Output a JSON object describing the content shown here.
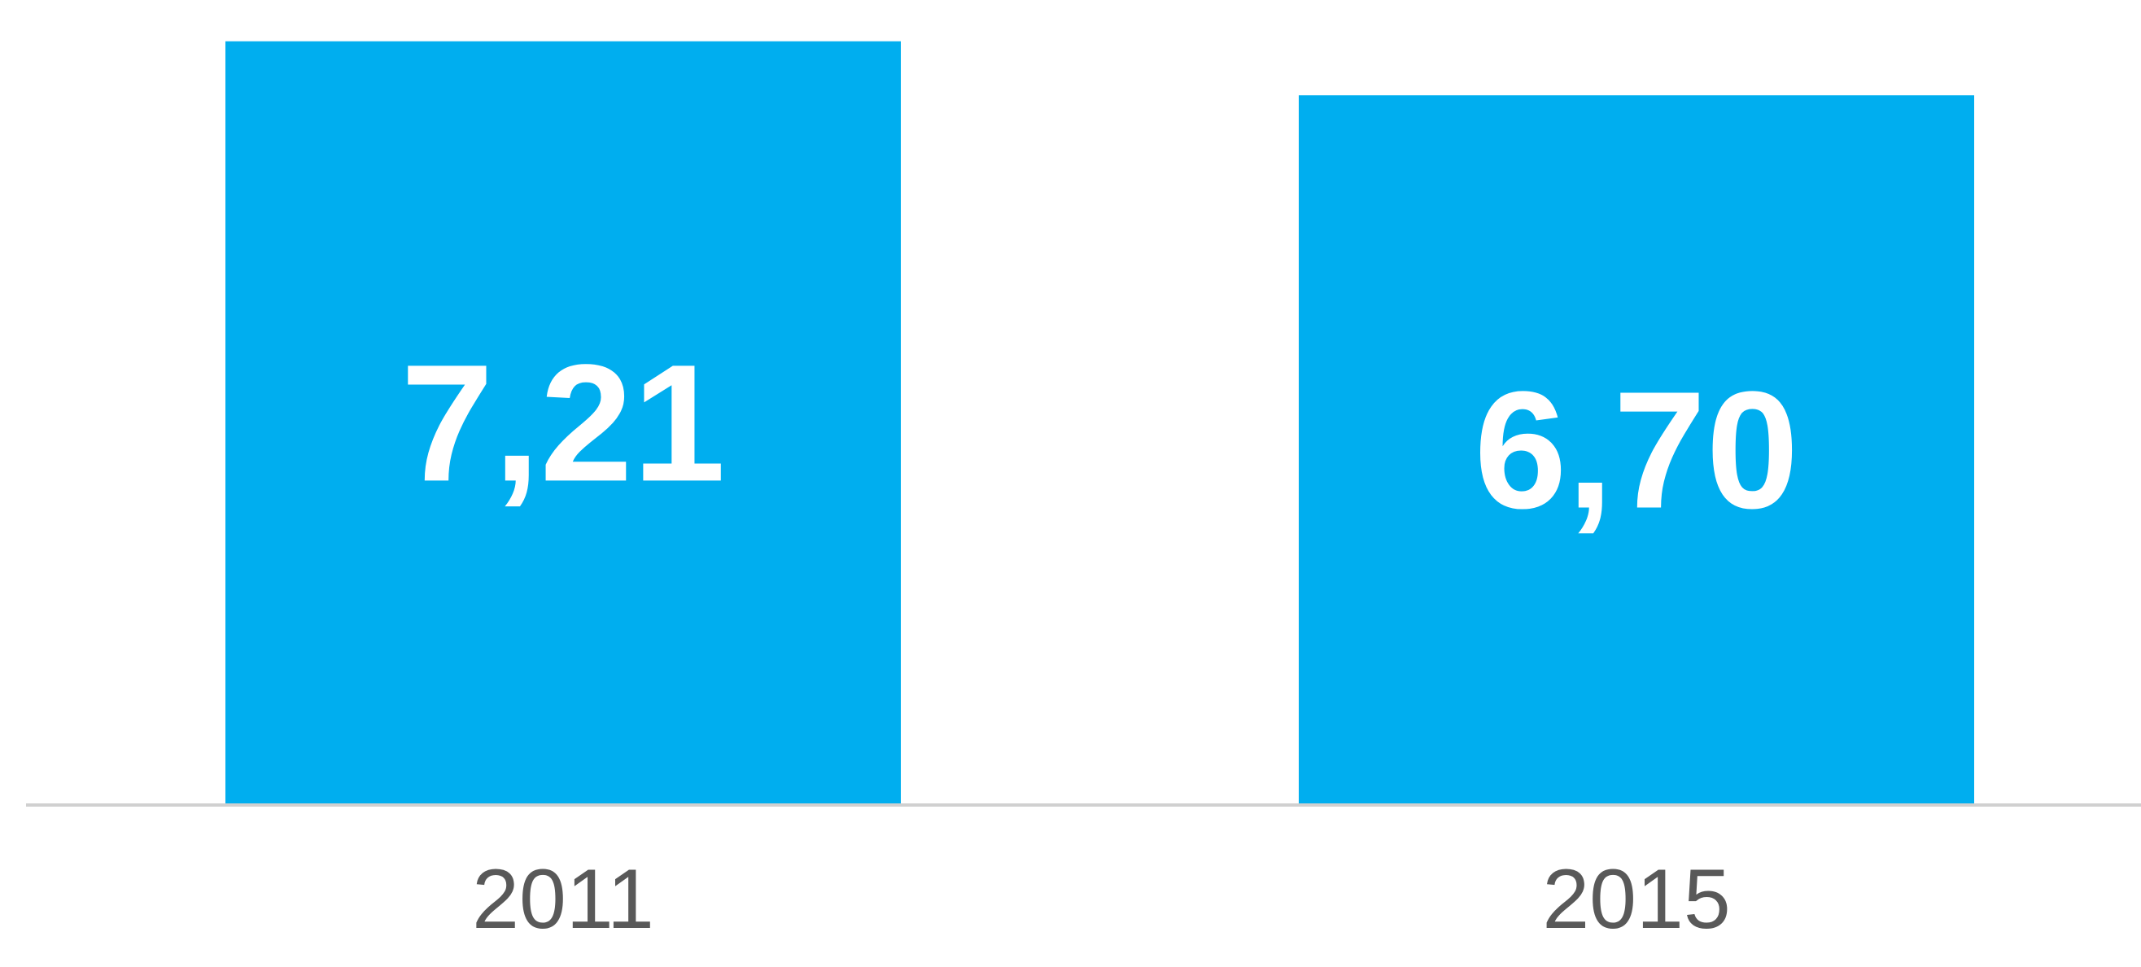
{
  "chart_data": {
    "type": "bar",
    "categories": [
      "2011",
      "2015"
    ],
    "values": [
      7.21,
      6.7
    ],
    "value_labels": [
      "7,21",
      "6,70"
    ],
    "title": "",
    "xlabel": "",
    "ylabel": "",
    "ylim": [
      0,
      7.4
    ],
    "grid": false,
    "legend": "none",
    "colors": {
      "bar": "#00AEEF",
      "value_label": "#FFFFFF",
      "category_label": "#595959",
      "baseline": "#D0D0D0"
    }
  }
}
